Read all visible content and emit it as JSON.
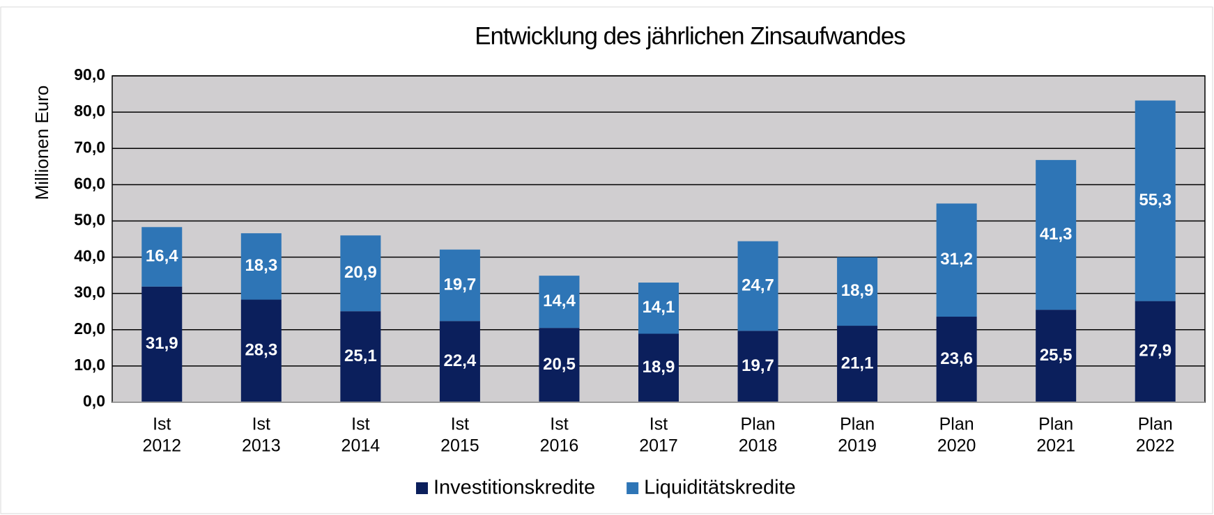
{
  "chart_data": {
    "type": "stacked_bar",
    "title": "Entwicklung des jährlichen Zinsaufwandes",
    "y_axis_label": "Millionen Euro",
    "categories": [
      [
        "Ist",
        "2012"
      ],
      [
        "Ist",
        "2013"
      ],
      [
        "Ist",
        "2014"
      ],
      [
        "Ist",
        "2015"
      ],
      [
        "Ist",
        "2016"
      ],
      [
        "Ist",
        "2017"
      ],
      [
        "Plan",
        "2018"
      ],
      [
        "Plan",
        "2019"
      ],
      [
        "Plan",
        "2020"
      ],
      [
        "Plan",
        "2021"
      ],
      [
        "Plan",
        "2022"
      ]
    ],
    "series": [
      {
        "name": "Investitionskredite",
        "color": "#0b1f5c",
        "values": [
          31.9,
          28.3,
          25.1,
          22.4,
          20.5,
          18.9,
          19.7,
          21.1,
          23.6,
          25.5,
          27.9
        ],
        "value_labels": [
          "31,9",
          "28,3",
          "25,1",
          "22,4",
          "20,5",
          "18,9",
          "19,7",
          "21,1",
          "23,6",
          "25,5",
          "27,9"
        ]
      },
      {
        "name": "Liquiditätskredite",
        "color": "#2e75b6",
        "values": [
          16.4,
          18.3,
          20.9,
          19.7,
          14.4,
          14.1,
          24.7,
          18.9,
          31.2,
          41.3,
          55.3
        ],
        "value_labels": [
          "16,4",
          "18,3",
          "20,9",
          "19,7",
          "14,4",
          "14,1",
          "24,7",
          "18,9",
          "31,2",
          "41,3",
          "55,3"
        ]
      }
    ],
    "ylim": [
      0,
      90
    ],
    "yticks": [
      {
        "value": 0,
        "label": "0,0"
      },
      {
        "value": 10,
        "label": "10,0"
      },
      {
        "value": 20,
        "label": "20,0"
      },
      {
        "value": 30,
        "label": "30,0"
      },
      {
        "value": 40,
        "label": "40,0"
      },
      {
        "value": 50,
        "label": "50,0"
      },
      {
        "value": 60,
        "label": "60,0"
      },
      {
        "value": 70,
        "label": "70,0"
      },
      {
        "value": 80,
        "label": "80,0"
      },
      {
        "value": 90,
        "label": "90,0"
      }
    ],
    "grid": true,
    "legend": "bottom"
  }
}
